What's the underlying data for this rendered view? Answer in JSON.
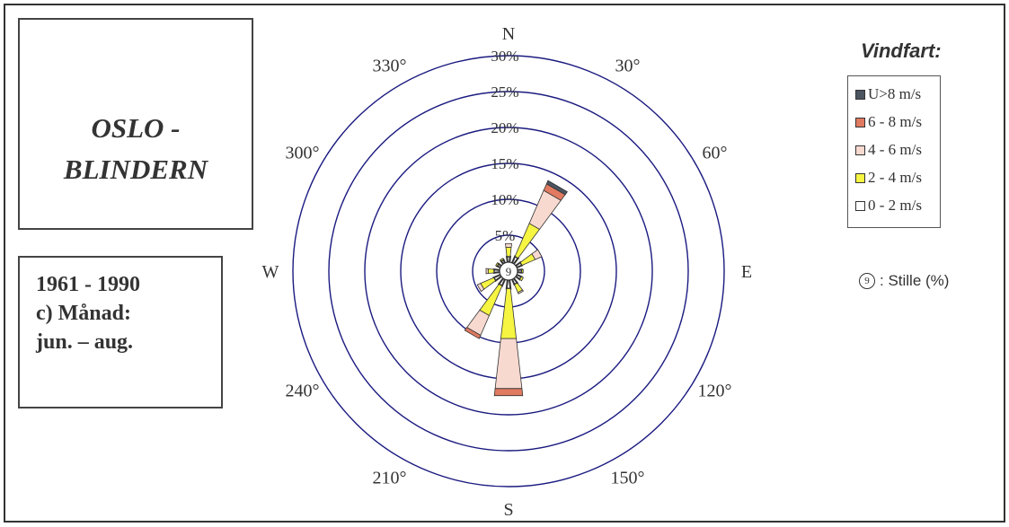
{
  "station": {
    "line1": "OSLO -",
    "line2": "BLINDERN"
  },
  "period": {
    "years": "1961 - 1990",
    "month_label": "c) Månad:",
    "months": "jun. – aug."
  },
  "legend": {
    "title": "Vindfart:",
    "items": [
      {
        "label": "U>8 m/s",
        "color": "#4a5560"
      },
      {
        "label": "6 - 8 m/s",
        "color": "#e07a60"
      },
      {
        "label": "4 - 6 m/s",
        "color": "#f7d9d0"
      },
      {
        "label": "2 - 4 m/s",
        "color": "#f5f542"
      },
      {
        "label": "0 - 2 m/s",
        "color": "#ffffff"
      }
    ]
  },
  "calm": {
    "value": "9",
    "label": ": Stille (%)"
  },
  "chart_data": {
    "type": "wind-rose",
    "radial_unit": "%",
    "rings": [
      "5%",
      "10%",
      "15%",
      "20%",
      "25%",
      "30%"
    ],
    "ring_values": [
      5,
      10,
      15,
      20,
      25,
      30
    ],
    "direction_labels": [
      {
        "angle": 0,
        "text": "N"
      },
      {
        "angle": 30,
        "text": "30°"
      },
      {
        "angle": 60,
        "text": "60°"
      },
      {
        "angle": 90,
        "text": "E"
      },
      {
        "angle": 120,
        "text": "120°"
      },
      {
        "angle": 150,
        "text": "150°"
      },
      {
        "angle": 180,
        "text": "S"
      },
      {
        "angle": 210,
        "text": "210°"
      },
      {
        "angle": 240,
        "text": "240°"
      },
      {
        "angle": 270,
        "text": "W"
      },
      {
        "angle": 300,
        "text": "300°"
      },
      {
        "angle": 330,
        "text": "330°"
      }
    ],
    "speed_classes": [
      "0 - 2 m/s",
      "2 - 4 m/s",
      "4 - 6 m/s",
      "6 - 8 m/s",
      "U>8 m/s"
    ],
    "calm_percent": 9,
    "sectors": [
      {
        "direction": 0,
        "values": [
          0.8,
          1.3,
          0.5,
          0.0,
          0.0
        ]
      },
      {
        "direction": 30,
        "values": [
          1.0,
          5.0,
          5.0,
          1.0,
          0.5
        ]
      },
      {
        "direction": 60,
        "values": [
          0.8,
          2.0,
          1.0,
          0.0,
          0.0
        ]
      },
      {
        "direction": 90,
        "values": [
          0.6,
          0.2,
          0.0,
          0.0,
          0.0
        ]
      },
      {
        "direction": 120,
        "values": [
          0.7,
          0.3,
          0.0,
          0.0,
          0.0
        ]
      },
      {
        "direction": 150,
        "values": [
          0.8,
          1.2,
          0.2,
          0.0,
          0.0
        ]
      },
      {
        "direction": 180,
        "values": [
          1.2,
          7.0,
          7.0,
          1.0,
          0.0
        ]
      },
      {
        "direction": 210,
        "values": [
          1.0,
          4.5,
          3.0,
          0.5,
          0.0
        ]
      },
      {
        "direction": 240,
        "values": [
          1.0,
          2.0,
          0.5,
          0.0,
          0.0
        ]
      },
      {
        "direction": 270,
        "values": [
          0.8,
          0.8,
          0.3,
          0.0,
          0.0
        ]
      },
      {
        "direction": 300,
        "values": [
          0.5,
          0.2,
          0.0,
          0.0,
          0.0
        ]
      },
      {
        "direction": 330,
        "values": [
          0.5,
          0.2,
          0.0,
          0.0,
          0.0
        ]
      }
    ]
  }
}
